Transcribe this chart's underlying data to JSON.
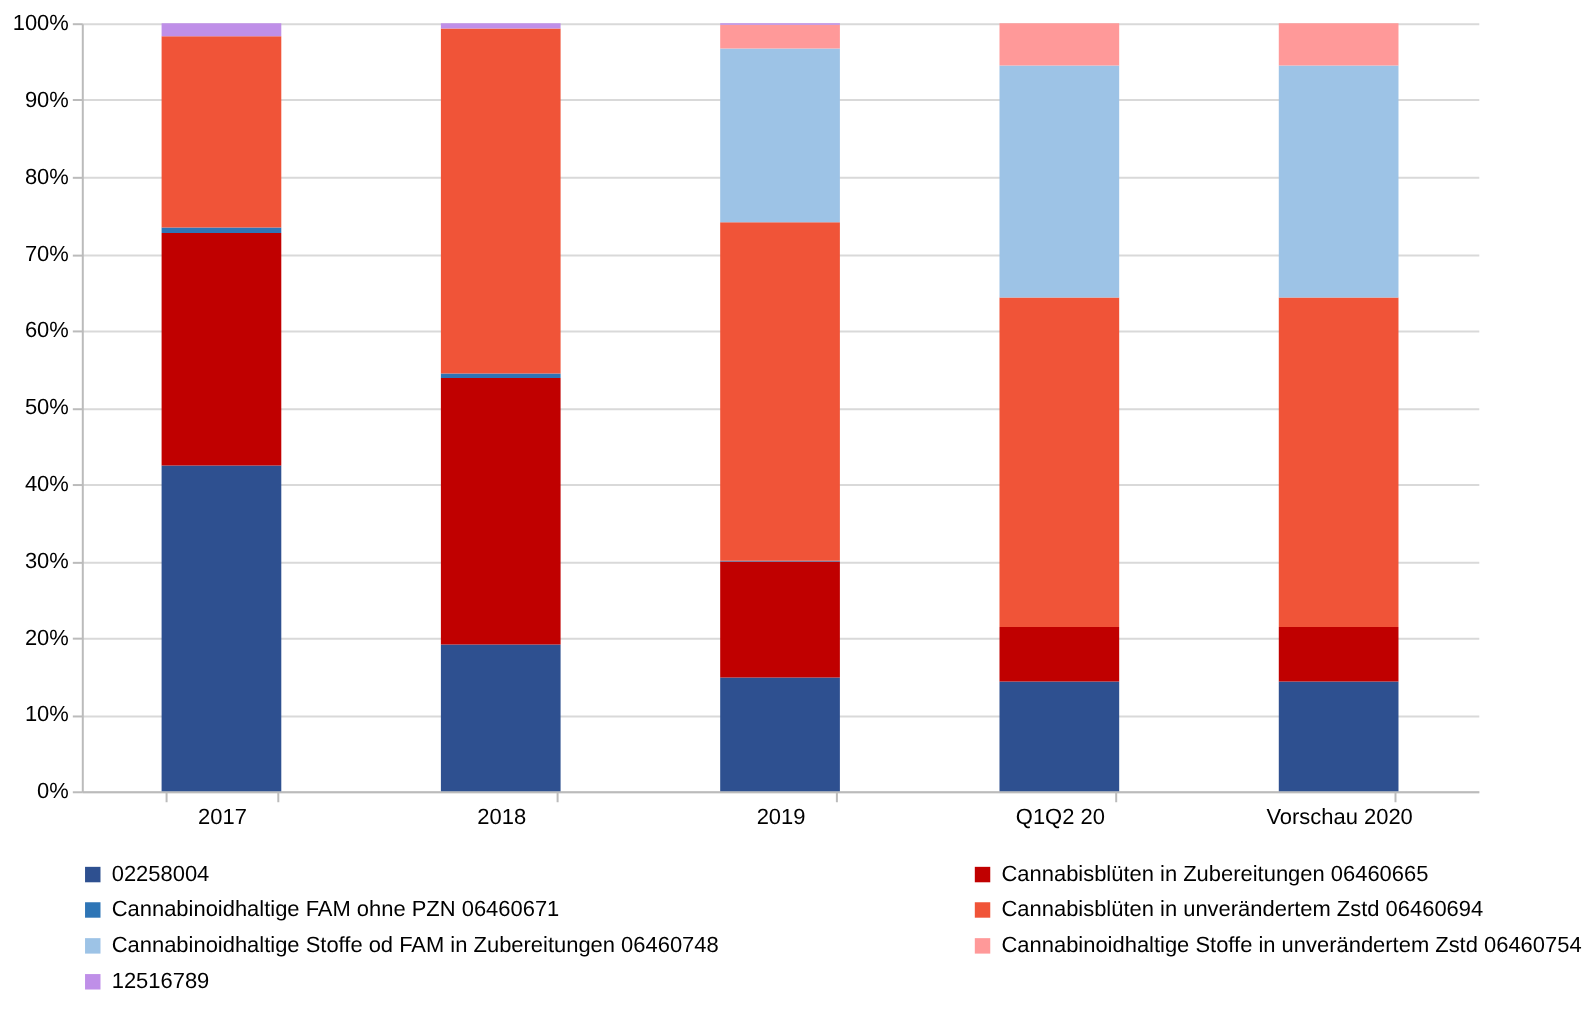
{
  "chart_data": {
    "type": "bar",
    "stacked": true,
    "categories": [
      "2017",
      "2018",
      "2019",
      "Q1Q2 20",
      "Vorschau 2020"
    ],
    "series": [
      {
        "name": "02258004",
        "color": "#2e5090",
        "values": [
          42.4,
          19.1,
          14.8,
          14.3,
          14.3
        ]
      },
      {
        "name": "Cannabisblüten in Zubereitungen 06460665",
        "color": "#c00000",
        "values": [
          30.3,
          34.7,
          15.1,
          7.1,
          7.1
        ]
      },
      {
        "name": "Cannabinoidhaltige FAM ohne PZN 06460671",
        "color": "#2e75b6",
        "values": [
          0.7,
          0.6,
          0.1,
          0,
          0
        ]
      },
      {
        "name": "Cannabisblüten in unverändertem Zstd 06460694",
        "color": "#f05438",
        "values": [
          24.9,
          44.9,
          44.1,
          42.9,
          42.9
        ]
      },
      {
        "name": "Cannabinoidhaltige  Stoffe od FAM in  Zubereitungen 06460748",
        "color": "#9dc3e6",
        "values": [
          0,
          0,
          22.6,
          30.2,
          30.2
        ]
      },
      {
        "name": "Cannabinoidhaltige Stoffe in unverändertem Zstd 06460754",
        "color": "#ff9999",
        "values": [
          0,
          0,
          3.1,
          5.5,
          5.5
        ]
      },
      {
        "name": "12516789",
        "color": "#bf8fe8",
        "values": [
          1.7,
          0.7,
          0.2,
          0,
          0
        ]
      }
    ],
    "ylim": [
      0,
      100
    ],
    "yticks": [
      {
        "value": 0,
        "label": "0%"
      },
      {
        "value": 10,
        "label": "10%"
      },
      {
        "value": 20,
        "label": "20%"
      },
      {
        "value": 30,
        "label": "30%"
      },
      {
        "value": 40,
        "label": "40%"
      },
      {
        "value": 50,
        "label": "50%"
      },
      {
        "value": 60,
        "label": "60%"
      },
      {
        "value": 70,
        "label": "70%"
      },
      {
        "value": 80,
        "label": "80%"
      },
      {
        "value": 90,
        "label": "90%"
      },
      {
        "value": 100,
        "label": "100%"
      }
    ],
    "grid": "y",
    "legend": "bottom"
  }
}
